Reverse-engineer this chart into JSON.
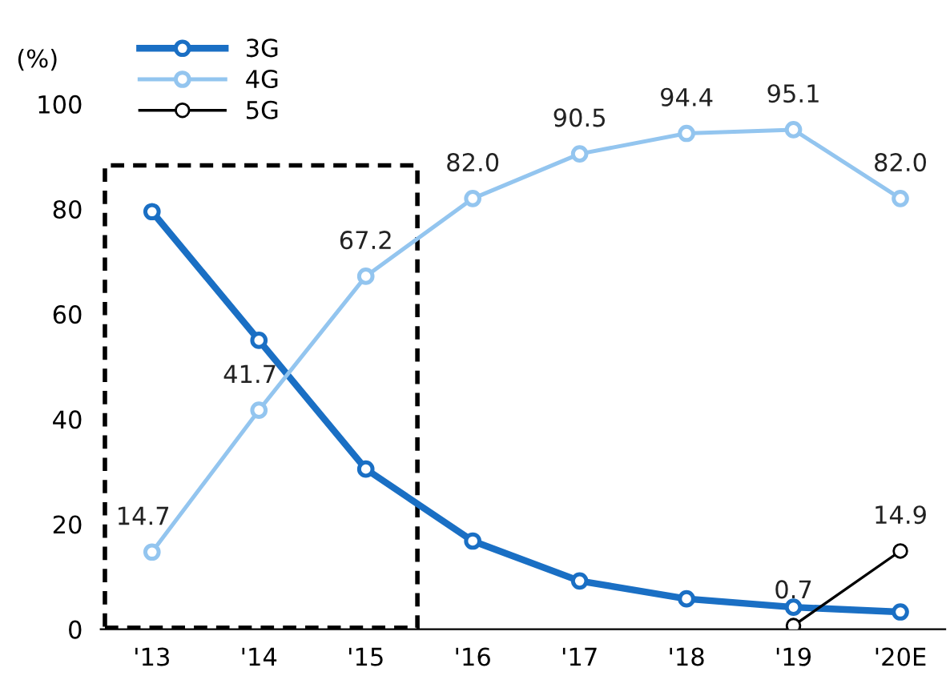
{
  "chart_data": {
    "type": "line",
    "ylabel": "(%)",
    "categories": [
      "'13",
      "'14",
      "'15",
      "'16",
      "'17",
      "'18",
      "'19",
      "'20E"
    ],
    "series": [
      {
        "name": "3G",
        "color": "#1a6fc4",
        "values": [
          79.5,
          55.0,
          30.5,
          16.8,
          9.2,
          5.8,
          4.2,
          3.3
        ]
      },
      {
        "name": "4G",
        "color": "#93c5ef",
        "values": [
          14.7,
          41.7,
          67.2,
          82.0,
          90.5,
          94.4,
          95.1,
          82.0
        ],
        "value_labels": [
          "14.7",
          "41.7",
          "67.2",
          "82.0",
          "90.5",
          "94.4",
          "95.1",
          "82.0"
        ]
      },
      {
        "name": "5G",
        "color": "#000000",
        "values": [
          null,
          null,
          null,
          null,
          null,
          null,
          0.7,
          14.9
        ],
        "value_labels": [
          null,
          null,
          null,
          null,
          null,
          null,
          "0.7",
          "14.9"
        ]
      }
    ],
    "ylim": [
      0,
      100
    ],
    "yticks": [
      0,
      20,
      40,
      60,
      80,
      100
    ],
    "marker": "circle",
    "grid": false,
    "legend": "top left"
  }
}
